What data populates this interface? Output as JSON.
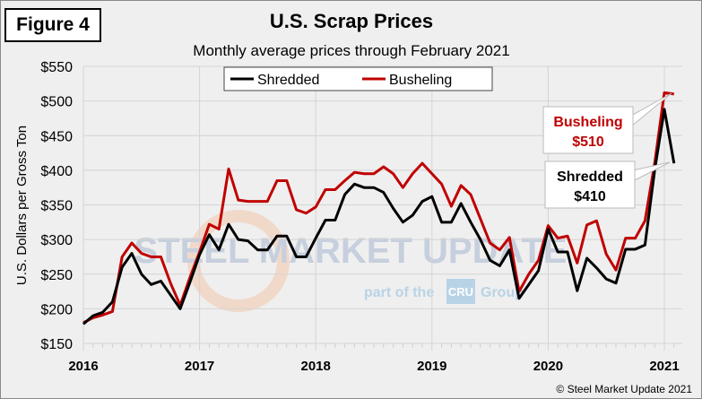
{
  "figure_label": "Figure 4",
  "copyright": "© Steel Market Update 2021",
  "watermark": {
    "line1": "STEEL MARKET UPDATE",
    "line2": "part of the",
    "brand": "CRU",
    "line3": "Group"
  },
  "chart_data": {
    "type": "line",
    "title": "U.S. Scrap Prices",
    "subtitle": "Monthly average prices through February 2021",
    "ylabel": "U.S. Dollars per Gross Ton",
    "xlabel": "",
    "ylim": [
      150,
      550
    ],
    "yticks": [
      "$150",
      "$200",
      "$250",
      "$300",
      "$350",
      "$400",
      "$450",
      "$500",
      "$550"
    ],
    "xticks": [
      "2016",
      "2017",
      "2018",
      "2019",
      "2020",
      "2021"
    ],
    "x_start": "Jan 2016",
    "x_end": "Feb 2021",
    "grid": true,
    "legend": "top-center",
    "series": [
      {
        "name": "Shredded",
        "color": "#000000",
        "values": [
          178,
          190,
          195,
          210,
          260,
          280,
          250,
          235,
          240,
          220,
          200,
          238,
          278,
          307,
          285,
          322,
          300,
          298,
          285,
          285,
          305,
          305,
          275,
          275,
          302,
          328,
          328,
          365,
          380,
          375,
          375,
          368,
          345,
          325,
          335,
          355,
          362,
          325,
          325,
          352,
          325,
          300,
          270,
          262,
          285,
          215,
          235,
          255,
          315,
          282,
          282,
          226,
          273,
          259,
          243,
          237,
          286,
          286,
          292,
          400,
          488,
          410
        ]
      },
      {
        "name": "Busheling",
        "color": "#c00000",
        "values": [
          180,
          187,
          191,
          196,
          275,
          295,
          280,
          275,
          275,
          237,
          205,
          245,
          282,
          322,
          315,
          402,
          357,
          355,
          355,
          355,
          385,
          385,
          343,
          338,
          347,
          372,
          372,
          385,
          397,
          395,
          395,
          405,
          395,
          375,
          395,
          410,
          395,
          380,
          348,
          378,
          365,
          330,
          295,
          285,
          303,
          225,
          250,
          270,
          320,
          302,
          305,
          266,
          321,
          327,
          279,
          256,
          302,
          302,
          327,
          410,
          512,
          510
        ]
      }
    ],
    "annotations": [
      {
        "series": "Busheling",
        "label": "Busheling",
        "value": "$510",
        "color": "#c00000"
      },
      {
        "series": "Shredded",
        "label": "Shredded",
        "value": "$410",
        "color": "#000000"
      }
    ]
  }
}
